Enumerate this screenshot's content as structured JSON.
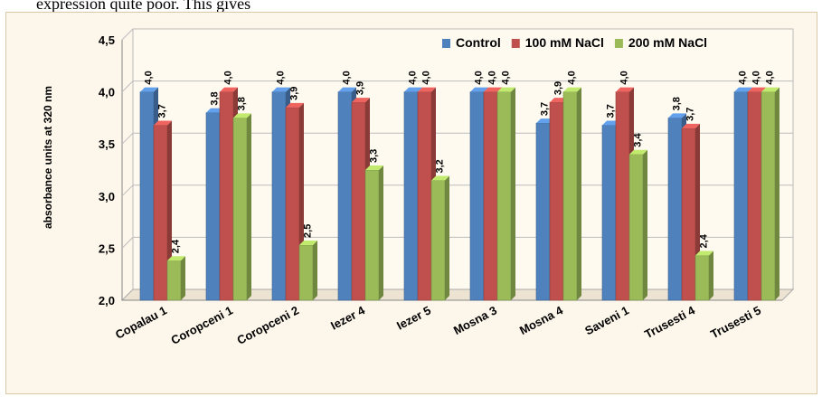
{
  "caption_fragment": "expression quite poor. This gives",
  "chart_data": {
    "type": "bar",
    "title": "",
    "xlabel": "",
    "ylabel": "absorbance units at 320 nm",
    "ylim": [
      2.0,
      4.5
    ],
    "yticks": [
      "2,0",
      "2,5",
      "3,0",
      "3,5",
      "4,0",
      "4,5"
    ],
    "ytick_values": [
      2.0,
      2.5,
      3.0,
      3.5,
      4.0,
      4.5
    ],
    "grid": true,
    "legend_position": "top-right",
    "categories": [
      "Copalau 1",
      "Coropceni 1",
      "Coropceni 2",
      "Iezer 4",
      "Iezer 5",
      "Mosna 3",
      "Mosna 4",
      "Saveni 1",
      "Trusesti 4",
      "Trusesti 5"
    ],
    "series": [
      {
        "name": "Control",
        "color": "#4f81bd",
        "values": [
          4.0,
          3.8,
          4.0,
          4.0,
          4.0,
          4.0,
          3.7,
          3.68,
          3.75,
          4.0
        ],
        "labels": [
          "4,0",
          "3,8",
          "4,0",
          "4,0",
          "4,0",
          "4,0",
          "3,7",
          "3,7",
          "3,8",
          "4,0"
        ]
      },
      {
        "name": "100 mM NaCl",
        "color": "#c0504d",
        "values": [
          3.68,
          4.0,
          3.85,
          3.9,
          4.0,
          4.0,
          3.9,
          4.0,
          3.65,
          4.0
        ],
        "labels": [
          "3,7",
          "4,0",
          "3,9",
          "3,9",
          "4,0",
          "4,0",
          "3,9",
          "4,0",
          "3,7",
          "4,0"
        ]
      },
      {
        "name": "200 mM NaCl",
        "color": "#9bbb59",
        "values": [
          2.38,
          3.75,
          2.53,
          3.25,
          3.15,
          4.0,
          4.0,
          3.4,
          2.43,
          4.0
        ],
        "labels": [
          "2,4",
          "3,8",
          "2,5",
          "3,3",
          "3,2",
          "4,0",
          "4,0",
          "3,4",
          "2,4",
          "4,0"
        ]
      }
    ]
  }
}
